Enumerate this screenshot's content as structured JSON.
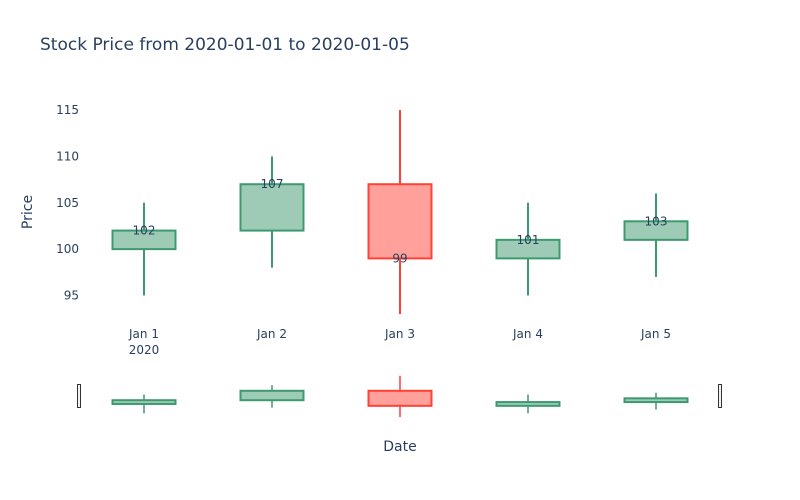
{
  "chart_data": {
    "type": "candlestick",
    "title": "Stock Price from 2020-01-01 to 2020-01-05",
    "xlabel": "Date",
    "ylabel": "Price",
    "x_tick_labels": [
      "Jan 1",
      "Jan 2",
      "Jan 3",
      "Jan 4",
      "Jan 5"
    ],
    "x_year_label": "2020",
    "dates": [
      "2020-01-01",
      "2020-01-02",
      "2020-01-03",
      "2020-01-04",
      "2020-01-05"
    ],
    "open": [
      100,
      102,
      107,
      99,
      101
    ],
    "high": [
      105,
      110,
      115,
      105,
      106
    ],
    "low": [
      95,
      98,
      93,
      95,
      97
    ],
    "close": [
      102,
      107,
      99,
      101,
      103
    ],
    "annotations": [
      "102",
      "107",
      "99",
      "101",
      "103"
    ],
    "y_ticks": [
      95,
      100,
      105,
      110,
      115
    ],
    "ylim": [
      92,
      117
    ],
    "grid": false,
    "rangeslider": true,
    "colors": {
      "increasing_line": "#3d9970",
      "increasing_fill": "#9ecbb5",
      "decreasing_line": "#ff4136",
      "decreasing_fill": "#ffa09b",
      "text": "#2a3f5f"
    }
  }
}
